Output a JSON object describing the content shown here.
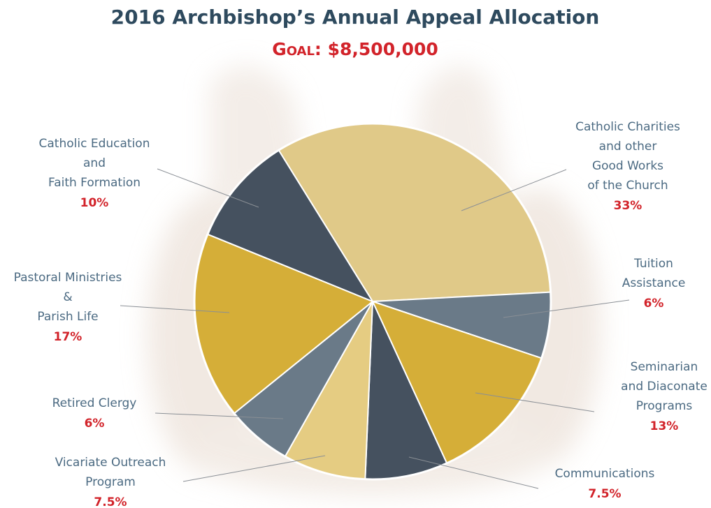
{
  "chart_data": {
    "type": "pie",
    "title": "2016 Archbishop’s Annual Appeal Allocation",
    "subtitle": "Goal: $8,500,000",
    "categories": [
      "Catholic Charities\nand other\nGood Works\nof the Church",
      "Tuition\nAssistance",
      "Seminarian\nand Diaconate\nPrograms",
      "Communications",
      "Vicariate Outreach\nProgram",
      "Retired Clergy",
      "Pastoral Ministries\n&\nParish Life",
      "Catholic Education\nand\nFaith Formation"
    ],
    "values": [
      33,
      6,
      13,
      7.5,
      7.5,
      6,
      17,
      10
    ],
    "value_labels": [
      "33%",
      "6%",
      "13%",
      "7.5%",
      "7.5%",
      "6%",
      "17%",
      "10%"
    ],
    "colors": [
      "#e0c988",
      "#6a7a88",
      "#d5ae38",
      "#45515f",
      "#e5cc82",
      "#6a7a88",
      "#d5ae38",
      "#45515f"
    ]
  }
}
